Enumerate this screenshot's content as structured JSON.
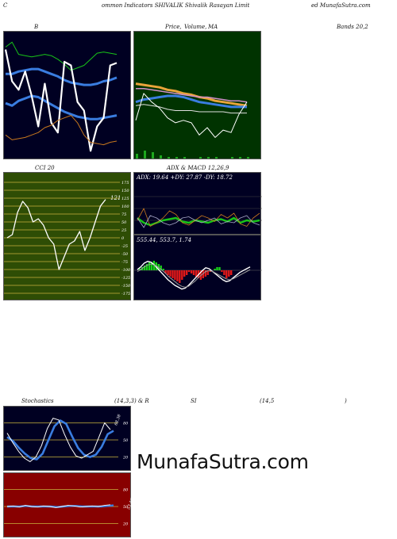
{
  "header": {
    "left": "C",
    "center": "ommon  Indicators SHIVALIK Shivalik Rasayan  Limit",
    "right": "ed MunafaSutra.com"
  },
  "titles": {
    "bb_left": "B",
    "bb_price": "Price,",
    "bb_volume": "Volume,",
    "bb_ma": "MA",
    "bb_right": "Bands 20,2",
    "cci": "CCI 20",
    "adx": "ADX  & MACD 12,26,9",
    "stoch_left": "Stochastics",
    "stoch_mid": "(14,3,3) & R",
    "rsi": "SI",
    "rsi_mid": "(14,5",
    "rsi_right": ")"
  },
  "watermark": "MunafaSutra.com",
  "colors": {
    "dark_bg": "#000022",
    "green_bg": "#003300",
    "cci_bg": "#2e4d05",
    "rsi_bg": "#880000",
    "white": "#ffffff",
    "blue": "#3a7de0",
    "green_line": "#18c418",
    "orange": "#c8781e"
  },
  "chart_data": [
    {
      "type": "line",
      "name": "bollinger-bands",
      "series": [
        {
          "values": [
            90,
            94,
            84,
            83,
            82,
            83,
            84,
            83,
            80,
            76,
            71,
            73,
            75,
            80,
            85,
            86,
            85,
            84
          ]
        },
        {
          "values": [
            68,
            68,
            70,
            71,
            72,
            72,
            70,
            68,
            66,
            63,
            61,
            60,
            59,
            59,
            60,
            62,
            63,
            65
          ]
        },
        {
          "values": [
            44,
            42,
            46,
            48,
            50,
            49,
            46,
            43,
            40,
            37,
            35,
            33,
            32,
            31,
            31,
            32,
            33,
            34
          ]
        },
        {
          "values": [
            88,
            62,
            55,
            70,
            50,
            25,
            60,
            28,
            20,
            78,
            75,
            45,
            38,
            5,
            25,
            32,
            75,
            77
          ]
        },
        {
          "values": [
            18,
            14,
            15,
            16,
            18,
            20,
            24,
            26,
            30,
            32,
            34,
            28,
            18,
            12,
            11,
            10,
            12,
            13
          ]
        }
      ]
    },
    {
      "type": "line",
      "name": "price-volume-ma",
      "series": [
        {
          "values": [
            60,
            59,
            58,
            57,
            55,
            54,
            52,
            51,
            49,
            48,
            46,
            45,
            44,
            43,
            42
          ]
        },
        {
          "values": [
            56,
            56,
            55,
            54,
            53,
            52,
            51,
            50,
            49,
            49,
            48,
            47,
            46,
            46,
            45
          ]
        },
        {
          "values": [
            45,
            47,
            48,
            49,
            50,
            50,
            49,
            47,
            45,
            44,
            43,
            42,
            41,
            41,
            41
          ]
        },
        {
          "values": [
            42,
            43,
            42,
            41,
            39,
            38,
            38,
            38,
            37,
            37,
            37,
            37,
            36,
            36,
            36
          ]
        },
        {
          "values": [
            30,
            52,
            45,
            40,
            32,
            28,
            30,
            28,
            18,
            24,
            16,
            22,
            20,
            35,
            45
          ]
        }
      ],
      "volume": [
        3,
        5,
        4,
        2,
        1,
        1,
        1,
        0,
        1,
        1,
        1,
        0,
        1,
        1,
        1
      ]
    },
    {
      "type": "line",
      "name": "cci",
      "ylim": [
        -175,
        175
      ],
      "yticks": [
        175,
        150,
        125,
        100,
        75,
        50,
        25,
        0,
        -25,
        -50,
        -75,
        -100,
        -125,
        -150,
        -175
      ],
      "tick_labels": [
        "175",
        "150",
        "125",
        "100",
        "75",
        "50",
        "25",
        "0",
        "-25",
        "-50",
        "-75",
        "-100",
        "-125",
        "-150",
        "-175"
      ],
      "last_label": "121",
      "series": [
        {
          "values": [
            0,
            10,
            80,
            115,
            95,
            50,
            60,
            40,
            0,
            -20,
            -100,
            -60,
            -20,
            -10,
            20,
            -40,
            0,
            50,
            100,
            121
          ]
        }
      ]
    },
    {
      "type": "line",
      "name": "adx",
      "label": "ADX: 19.64  +DY: 27.87 -DY: 18.72",
      "series": [
        {
          "values": [
            22,
            18,
            16,
            18,
            20,
            21,
            22,
            19,
            18,
            20,
            19,
            18,
            20,
            21,
            19,
            22,
            18,
            20,
            19,
            20
          ]
        },
        {
          "values": [
            20,
            30,
            15,
            18,
            22,
            28,
            25,
            18,
            16,
            20,
            24,
            22,
            19,
            25,
            22,
            26,
            17,
            15,
            22,
            26
          ]
        },
        {
          "values": [
            22,
            14,
            24,
            22,
            18,
            16,
            18,
            22,
            23,
            20,
            18,
            20,
            22,
            17,
            19,
            18,
            22,
            24,
            18,
            16
          ]
        }
      ]
    },
    {
      "type": "bar",
      "name": "macd",
      "label": "555.44,  553.7,  1.74",
      "histogram": [
        1,
        2,
        3,
        4,
        5,
        5,
        6,
        5,
        4,
        3,
        1,
        -2,
        -3,
        -4,
        -5,
        -6,
        -7,
        -8,
        -6,
        -4,
        -3,
        -1,
        -2,
        -3,
        -4,
        -5,
        -6,
        -5,
        -4,
        -3,
        -1,
        0,
        1,
        2,
        2,
        -1,
        -3,
        -5,
        -4,
        -3
      ],
      "series": [
        {
          "values": [
            5,
            8,
            12,
            14,
            13,
            10,
            6,
            2,
            -2,
            -6,
            -9,
            -12,
            -14,
            -16,
            -15,
            -12,
            -8,
            -4,
            0,
            4,
            7,
            6,
            3,
            0,
            -3,
            -6,
            -8,
            -7,
            -4,
            -1,
            2,
            4,
            6,
            8
          ]
        },
        {
          "values": [
            3,
            5,
            8,
            10,
            11,
            10,
            8,
            5,
            2,
            -2,
            -5,
            -8,
            -11,
            -13,
            -14,
            -13,
            -10,
            -7,
            -3,
            0,
            3,
            4,
            3,
            1,
            -1,
            -3,
            -5,
            -6,
            -5,
            -3,
            -1,
            1,
            3,
            5
          ]
        }
      ]
    },
    {
      "type": "line",
      "name": "stochastics",
      "yticks": [
        80,
        50,
        20
      ],
      "tick_labels": [
        "80",
        "50",
        "20"
      ],
      "last_label": "68.38",
      "series": [
        {
          "values": [
            62,
            45,
            30,
            18,
            12,
            20,
            40,
            70,
            88,
            85,
            60,
            38,
            22,
            18,
            24,
            30,
            55,
            80,
            68
          ]
        },
        {
          "values": [
            55,
            48,
            36,
            26,
            18,
            16,
            26,
            50,
            74,
            84,
            78,
            56,
            36,
            24,
            20,
            24,
            38,
            60,
            66
          ]
        }
      ]
    },
    {
      "type": "line",
      "name": "rsi",
      "yticks": [
        80,
        50,
        20
      ],
      "tick_labels": [
        "80",
        "50",
        "20"
      ],
      "last_label": "53.46",
      "series": [
        {
          "values": [
            50,
            51,
            49,
            52,
            50,
            49,
            51,
            50,
            48,
            50,
            52,
            51,
            49,
            50,
            51,
            50,
            52,
            53
          ]
        },
        {
          "values": [
            50,
            50,
            50,
            51,
            50,
            50,
            50,
            50,
            49,
            50,
            51,
            51,
            50,
            50,
            50,
            50,
            51,
            52
          ]
        }
      ]
    }
  ]
}
